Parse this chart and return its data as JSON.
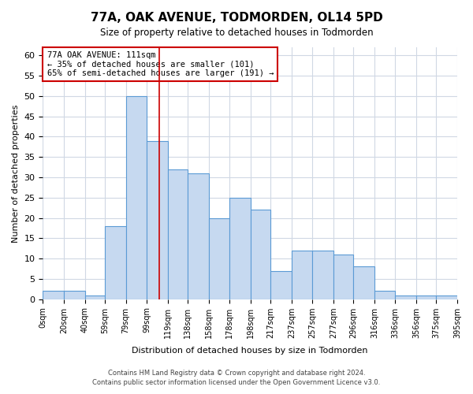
{
  "title": "77A, OAK AVENUE, TODMORDEN, OL14 5PD",
  "subtitle": "Size of property relative to detached houses in Todmorden",
  "xlabel": "Distribution of detached houses by size in Todmorden",
  "ylabel": "Number of detached properties",
  "bar_edges": [
    0,
    20,
    40,
    59,
    79,
    99,
    119,
    138,
    158,
    178,
    198,
    217,
    237,
    257,
    277,
    296,
    316,
    336,
    356,
    375,
    395
  ],
  "bar_heights": [
    2,
    2,
    1,
    18,
    50,
    39,
    32,
    31,
    20,
    25,
    22,
    7,
    12,
    12,
    11,
    8,
    2,
    1,
    1,
    1
  ],
  "bar_color": "#c6d9f0",
  "bar_edge_color": "#5b9bd5",
  "property_line_x": 111,
  "property_line_color": "#cc0000",
  "annotation_box_text": "77A OAK AVENUE: 111sqm\n← 35% of detached houses are smaller (101)\n65% of semi-detached houses are larger (191) →",
  "annotation_box_color": "#cc0000",
  "ylim": [
    0,
    62
  ],
  "xlim": [
    0,
    395
  ],
  "tick_labels": [
    "0sqm",
    "20sqm",
    "40sqm",
    "59sqm",
    "79sqm",
    "99sqm",
    "119sqm",
    "138sqm",
    "158sqm",
    "178sqm",
    "198sqm",
    "217sqm",
    "237sqm",
    "257sqm",
    "277sqm",
    "296sqm",
    "316sqm",
    "336sqm",
    "356sqm",
    "375sqm",
    "395sqm"
  ],
  "footer_line1": "Contains HM Land Registry data © Crown copyright and database right 2024.",
  "footer_line2": "Contains public sector information licensed under the Open Government Licence v3.0.",
  "background_color": "#ffffff",
  "grid_color": "#d0d8e4"
}
